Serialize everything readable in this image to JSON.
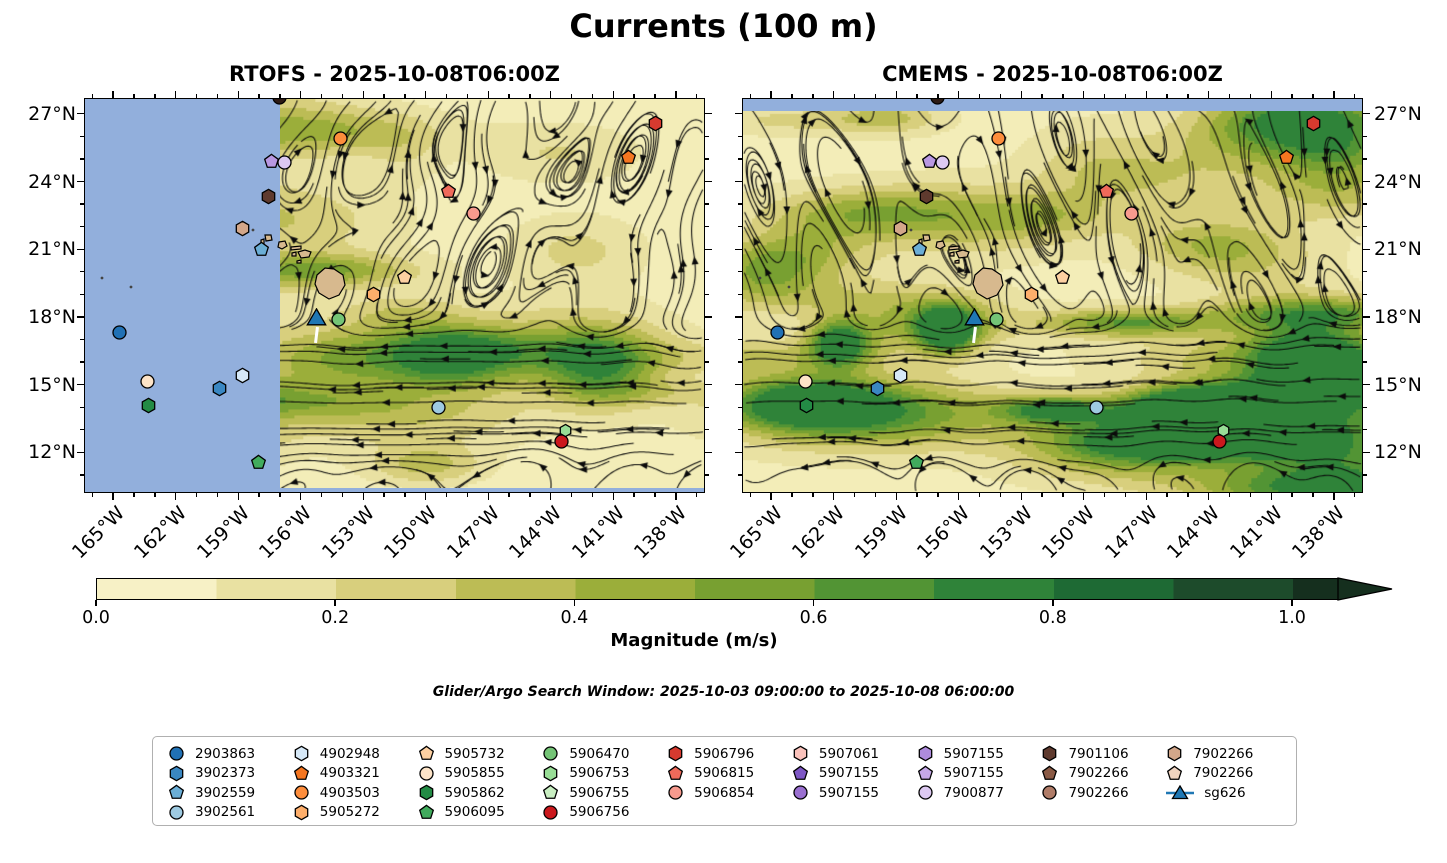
{
  "chart_data": {
    "type": "heatmap",
    "subtype": "ocean-current-streamplot-with-argo-markers",
    "title": "Currents (100 m)",
    "subtitle": "Glider/Argo Search Window: 2025-10-03 09:00:00 to 2025-10-08 06:00:00",
    "panels": [
      {
        "id": "rtofs",
        "title": "RTOFS - 2025-10-08T06:00Z",
        "no_data_mask": "west-strip",
        "mask_fraction": 0.3156
      },
      {
        "id": "cmems",
        "title": "CMEMS - 2025-10-08T06:00Z",
        "no_data_mask": "north-strip",
        "mask_fraction": 0.031
      }
    ],
    "axes": {
      "lon_labels": [
        "165°W",
        "162°W",
        "159°W",
        "156°W",
        "153°W",
        "150°W",
        "147°W",
        "144°W",
        "141°W",
        "138°W"
      ],
      "lon_ticks_deg_w": [
        165,
        162,
        159,
        156,
        153,
        150,
        147,
        144,
        141,
        138
      ],
      "lat_labels": [
        "27°N",
        "24°N",
        "21°N",
        "18°N",
        "15°N",
        "12°N"
      ],
      "lat_ticks_deg_n": [
        27,
        24,
        21,
        18,
        15,
        12
      ],
      "lon_range_deg_w": [
        166.4,
        136.6
      ],
      "lat_range_deg_n": [
        27.7,
        10.2
      ],
      "minor_tick_step_deg": 1
    },
    "colorbar": {
      "label": "Magnitude (m/s)",
      "tick_labels": [
        "0.0",
        "0.2",
        "0.4",
        "0.6",
        "0.8",
        "1.0"
      ],
      "tick_values": [
        0,
        0.2,
        0.4,
        0.6,
        0.8,
        1.0
      ],
      "extend": "max",
      "segment_colors": [
        "#f7f1c6",
        "#e9e1a2",
        "#d8cf7d",
        "#bcbc55",
        "#9bae3a",
        "#78a031",
        "#529434",
        "#2f8339",
        "#1e6a34",
        "#1d4b2b"
      ],
      "extension_color": "#152f1e"
    },
    "markers": [
      {
        "id": "2903863",
        "shape": "circle",
        "color": "#2171b5",
        "x01": 0.055,
        "y01": 0.59
      },
      {
        "id": "5905855",
        "shape": "circle",
        "color": "#fde4c8",
        "x01": 0.1,
        "y01": 0.714
      },
      {
        "id": "5905862",
        "shape": "hexagon",
        "color": "#238b45",
        "x01": 0.103,
        "y01": 0.775
      },
      {
        "id": "3902373",
        "shape": "hexagon",
        "color": "#3a87c2",
        "x01": 0.217,
        "y01": 0.734
      },
      {
        "id": "4902948",
        "shape": "hexagon",
        "color": "#d6e8f7",
        "x01": 0.254,
        "y01": 0.701
      },
      {
        "id": "5906095",
        "shape": "pentagon",
        "color": "#41ab5d",
        "x01": 0.28,
        "y01": 0.921
      },
      {
        "id": "3902559",
        "shape": "pentagon",
        "color": "#6baed6",
        "x01": 0.285,
        "y01": 0.38
      },
      {
        "id": "7902266",
        "shape": "hexagon",
        "color": "#d3a78a",
        "x01": 0.254,
        "y01": 0.327
      },
      {
        "id": "7901106",
        "shape": "hexagon",
        "color": "#5f3a2e",
        "x01": 0.295,
        "y01": 0.246
      },
      {
        "id": "5907155",
        "shape": "pentagon",
        "color": "#b998e2",
        "x01": 0.301,
        "y01": 0.157
      },
      {
        "id": "7900877",
        "shape": "circle",
        "color": "#ddc9f2",
        "x01": 0.322,
        "y01": 0.162
      },
      {
        "id": "4903503",
        "shape": "circle",
        "color": "#fd8d3c",
        "x01": 0.412,
        "y01": 0.099
      },
      {
        "id": "5905272",
        "shape": "hexagon",
        "color": "#fdae6b",
        "x01": 0.465,
        "y01": 0.496
      },
      {
        "id": "5905732",
        "shape": "pentagon",
        "color": "#fdd0a2",
        "x01": 0.515,
        "y01": 0.453
      },
      {
        "id": "5906470",
        "shape": "circle",
        "color": "#74c476",
        "x01": 0.409,
        "y01": 0.557
      },
      {
        "id": "sg626",
        "shape": "triangle",
        "color": "#1f77b4",
        "x01": 0.372,
        "y01": 0.557,
        "size": 17
      },
      {
        "id": "5906815",
        "shape": "pentagon",
        "color": "#ef6a5a",
        "x01": 0.586,
        "y01": 0.233
      },
      {
        "id": "5906854",
        "shape": "circle",
        "color": "#f79a8e",
        "x01": 0.626,
        "y01": 0.289
      },
      {
        "id": "3902561",
        "shape": "circle",
        "color": "#9ecae1",
        "x01": 0.57,
        "y01": 0.78
      },
      {
        "id": "5906756",
        "shape": "circle",
        "color": "#cb181d",
        "x01": 0.768,
        "y01": 0.866
      },
      {
        "id": "5906753",
        "shape": "hexagon",
        "color": "#98dd96",
        "x01": 0.774,
        "y01": 0.838,
        "size": 11
      },
      {
        "id": "5906796",
        "shape": "hexagon",
        "color": "#d63a2f",
        "x01": 0.919,
        "y01": 0.061
      },
      {
        "id": "4903321",
        "shape": "pentagon",
        "color": "#f57620",
        "x01": 0.876,
        "y01": 0.149
      },
      {
        "id": "unlabeled",
        "shape": "circle",
        "color": "#2d1b14",
        "x01": 0.313,
        "y01": -0.004,
        "size": 13
      }
    ],
    "legend": {
      "column_counts": [
        4,
        4,
        4,
        4,
        3,
        3,
        3,
        3,
        3
      ],
      "items": [
        {
          "label": "2903863",
          "shape": "circle",
          "color": "#2171b5"
        },
        {
          "label": "3902373",
          "shape": "hexagon",
          "color": "#3a87c2"
        },
        {
          "label": "3902559",
          "shape": "pentagon",
          "color": "#6baed6"
        },
        {
          "label": "3902561",
          "shape": "circle",
          "color": "#9ecae1"
        },
        {
          "label": "4902948",
          "shape": "hexagon",
          "color": "#d6e8f7"
        },
        {
          "label": "4903321",
          "shape": "pentagon",
          "color": "#f57620"
        },
        {
          "label": "4903503",
          "shape": "circle",
          "color": "#fd8d3c"
        },
        {
          "label": "5905272",
          "shape": "hexagon",
          "color": "#fdae6b"
        },
        {
          "label": "5905732",
          "shape": "pentagon",
          "color": "#fdd0a2"
        },
        {
          "label": "5905855",
          "shape": "circle",
          "color": "#fde4c8"
        },
        {
          "label": "5905862",
          "shape": "hexagon",
          "color": "#238b45"
        },
        {
          "label": "5906095",
          "shape": "pentagon",
          "color": "#41ab5d"
        },
        {
          "label": "5906470",
          "shape": "circle",
          "color": "#74c476"
        },
        {
          "label": "5906753",
          "shape": "hexagon",
          "color": "#98dd96"
        },
        {
          "label": "5906755",
          "shape": "pentagon",
          "color": "#c9efc2"
        },
        {
          "label": "5906756",
          "shape": "circle",
          "color": "#cb181d"
        },
        {
          "label": "5906796",
          "shape": "hexagon",
          "color": "#d63a2f"
        },
        {
          "label": "5906815",
          "shape": "pentagon",
          "color": "#ef6a5a"
        },
        {
          "label": "5906854",
          "shape": "circle",
          "color": "#f79a8e"
        },
        {
          "label": "5907061",
          "shape": "hexagon",
          "color": "#fac2bb"
        },
        {
          "label": "5907155",
          "shape": "pentagon",
          "color": "#7e57c5"
        },
        {
          "label": "5907155",
          "shape": "circle",
          "color": "#9a6fd0"
        },
        {
          "label": "5907155",
          "shape": "hexagon",
          "color": "#ae8bdc"
        },
        {
          "label": "5907155",
          "shape": "pentagon",
          "color": "#c5a8e8"
        },
        {
          "label": "7900877",
          "shape": "circle",
          "color": "#ddc9f2"
        },
        {
          "label": "7901106",
          "shape": "hexagon",
          "color": "#5f3a2e"
        },
        {
          "label": "7902266",
          "shape": "pentagon",
          "color": "#8a5a45"
        },
        {
          "label": "7902266",
          "shape": "circle",
          "color": "#b07c68"
        },
        {
          "label": "7902266",
          "shape": "hexagon",
          "color": "#d3a78a"
        },
        {
          "label": "7902266",
          "shape": "pentagon",
          "color": "#f0d4c0"
        },
        {
          "label": "sg626",
          "shape": "glider-line-triangle",
          "color": "#1f77b4"
        }
      ]
    },
    "map_colors": {
      "no_data_blue": "#92afdc",
      "land_tan": "#d7b98e",
      "islet_dark": "#444444",
      "streamline_color": "#0b0b0b",
      "field_palette": [
        "#f3edb8",
        "#e9e1a2",
        "#d8cf7d",
        "#bcbc55",
        "#9bae3a",
        "#78a031",
        "#529434",
        "#2f8339"
      ]
    }
  }
}
